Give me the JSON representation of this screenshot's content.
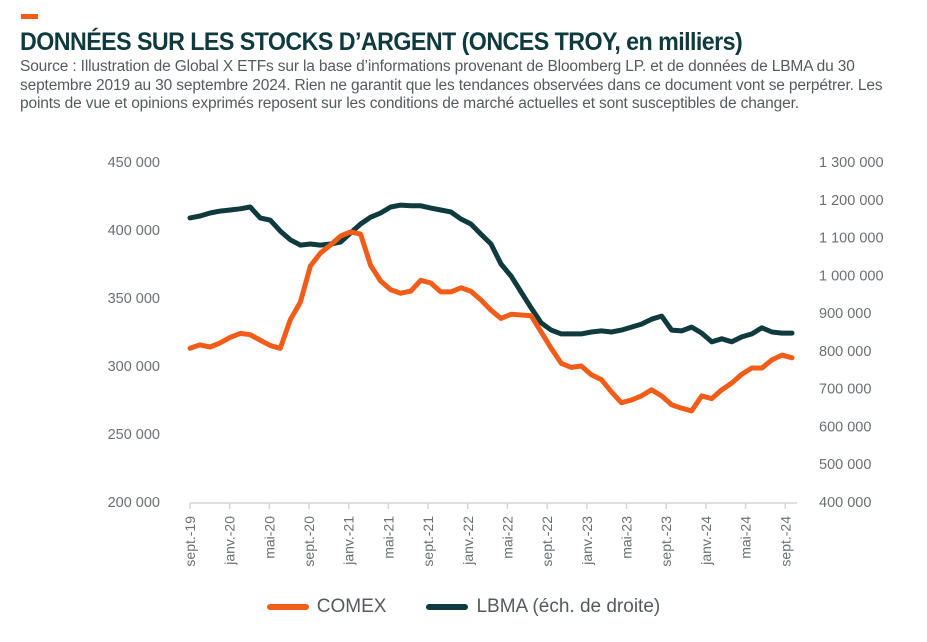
{
  "header": {
    "title": "DONNÉES SUR LES STOCKS D’ARGENT (ONCES TROY, en milliers)",
    "subtitle": "Source : Illustration de Global X ETFs sur la base d’informations provenant de Bloomberg LP. et de données de LBMA du 30 septembre 2019 au 30 septembre 2024. Rien ne garantit que les tendances observées dans ce document vont se perpétrer. Les points de vue et opinions exprimés reposent sur les conditions de marché actuelles et sont susceptibles de changer."
  },
  "colors": {
    "accent": "#f25c19",
    "comex": "#f25c19",
    "lbma": "#0f3a3e",
    "title": "#0f3a3e"
  },
  "legend": [
    {
      "label": "COMEX",
      "color": "#f25c19"
    },
    {
      "label": "LBMA (éch. de droite)",
      "color": "#0f3a3e"
    }
  ],
  "chart_data": {
    "type": "line",
    "title": "DONNÉES SUR LES STOCKS D’ARGENT (ONCES TROY, en milliers)",
    "xlabel": "",
    "ylabel_left": "",
    "ylabel_right": "",
    "legend_position": "bottom-center",
    "grid": false,
    "x_tick_labels": [
      "sept.-19",
      "janv.-20",
      "mai-20",
      "sept.-20",
      "janv.-21",
      "mai-21",
      "sept.-21",
      "janv.-22",
      "mai-22",
      "sept.-22",
      "janv.-23",
      "mai-23",
      "sept.-23",
      "janv.-24",
      "mai-24",
      "sept.-24"
    ],
    "y_left": {
      "ylim": [
        200000,
        450000
      ],
      "ticks": [
        200000,
        250000,
        300000,
        350000,
        400000,
        450000
      ],
      "tick_labels": [
        "200 000",
        "250 000",
        "300 000",
        "350 000",
        "400 000",
        "450 000"
      ]
    },
    "y_right": {
      "ylim": [
        400000,
        1300000
      ],
      "ticks": [
        400000,
        500000,
        600000,
        700000,
        800000,
        900000,
        1000000,
        1100000,
        1200000,
        1300000
      ],
      "tick_labels": [
        "400 000",
        "500 000",
        "600 000",
        "700 000",
        "800 000",
        "900 000",
        "1 000 000",
        "1 100 000",
        "1 200 000",
        "1 300 000"
      ]
    },
    "x": [
      "2019-09",
      "2019-10",
      "2019-11",
      "2019-12",
      "2020-01",
      "2020-02",
      "2020-03",
      "2020-04",
      "2020-05",
      "2020-06",
      "2020-07",
      "2020-08",
      "2020-09",
      "2020-10",
      "2020-11",
      "2020-12",
      "2021-01",
      "2021-02",
      "2021-03",
      "2021-04",
      "2021-05",
      "2021-06",
      "2021-07",
      "2021-08",
      "2021-09",
      "2021-10",
      "2021-11",
      "2021-12",
      "2022-01",
      "2022-02",
      "2022-03",
      "2022-04",
      "2022-05",
      "2022-06",
      "2022-07",
      "2022-08",
      "2022-09",
      "2022-10",
      "2022-11",
      "2022-12",
      "2023-01",
      "2023-02",
      "2023-03",
      "2023-04",
      "2023-05",
      "2023-06",
      "2023-07",
      "2023-08",
      "2023-09",
      "2023-10",
      "2023-11",
      "2023-12",
      "2024-01",
      "2024-02",
      "2024-03",
      "2024-04",
      "2024-05",
      "2024-06",
      "2024-07",
      "2024-08",
      "2024-09"
    ],
    "series": [
      {
        "name": "COMEX",
        "axis": "left",
        "values": [
          313000,
          315500,
          314000,
          317000,
          321000,
          324000,
          323000,
          319000,
          315000,
          313000,
          334000,
          347000,
          373500,
          383000,
          389000,
          395500,
          398500,
          397000,
          374000,
          362500,
          356000,
          353500,
          355000,
          363000,
          361000,
          354500,
          354500,
          357500,
          355000,
          348500,
          341000,
          335000,
          338000,
          337500,
          337000,
          325000,
          313000,
          302000,
          299000,
          300000,
          293500,
          290000,
          281000,
          273000,
          275000,
          278000,
          282500,
          278000,
          271500,
          269000,
          267000,
          278000,
          276000,
          282500,
          287500,
          294000,
          298500,
          298500,
          304500,
          308000,
          306000
        ]
      },
      {
        "name": "LBMA (éch. de droite)",
        "axis": "right",
        "values": [
          1152000,
          1157000,
          1165000,
          1170000,
          1173000,
          1176000,
          1181000,
          1152000,
          1146000,
          1117000,
          1094000,
          1080000,
          1083000,
          1080000,
          1083000,
          1088000,
          1112000,
          1136000,
          1154000,
          1165000,
          1181000,
          1186000,
          1184000,
          1184000,
          1178000,
          1173000,
          1168000,
          1149000,
          1136000,
          1109000,
          1083000,
          1030000,
          998000,
          956000,
          914000,
          874000,
          855000,
          845000,
          845000,
          845000,
          850000,
          853000,
          850000,
          855000,
          863000,
          871000,
          884000,
          892000,
          855000,
          853000,
          863000,
          847000,
          824000,
          832000,
          824000,
          837000,
          845000,
          861000,
          850000,
          847000,
          847000
        ]
      }
    ]
  }
}
